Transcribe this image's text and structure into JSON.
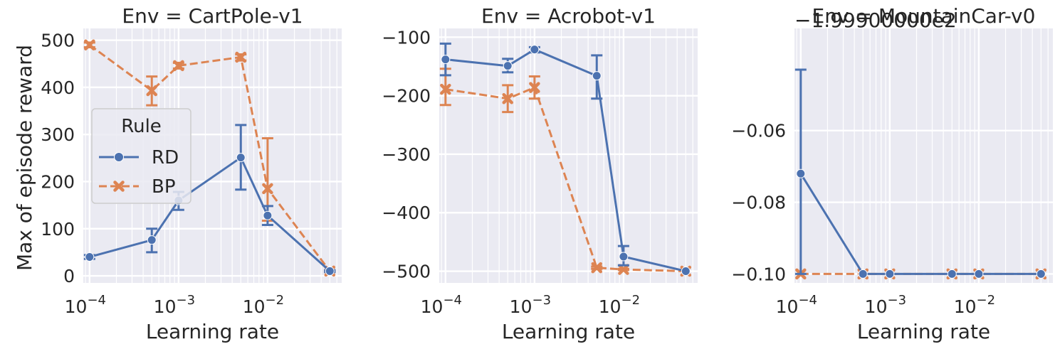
{
  "figure": {
    "ylabel": "Max of episode reward",
    "xlabel": "Learning rate",
    "x_tick_labels": [
      {
        "exp": -4,
        "text": "10",
        "sup": "−4"
      },
      {
        "exp": -3,
        "text": "10",
        "sup": "−3"
      },
      {
        "exp": -2,
        "text": "10",
        "sup": "−2"
      }
    ]
  },
  "legend": {
    "title": "Rule",
    "entries": [
      {
        "name": "RD",
        "color": "#4c72b0",
        "marker": "circle",
        "dash": "solid"
      },
      {
        "name": "BP",
        "color": "#dd8452",
        "marker": "x",
        "dash": "dashed"
      }
    ]
  },
  "colors": {
    "background": "#eaeaf2",
    "grid": "#ffffff",
    "rd": "#4c72b0",
    "bp": "#dd8452"
  },
  "chart_data": [
    {
      "type": "line",
      "title": "Env = CartPole-v1",
      "xscale": "log",
      "xlabel": "Learning rate",
      "ylabel": "Max of episode reward",
      "xlim": [
        8.5e-05,
        0.068
      ],
      "ylim": [
        -15,
        525
      ],
      "y_ticks": [
        0,
        100,
        200,
        300,
        400,
        500
      ],
      "y_tick_labels": [
        "0",
        "100",
        "200",
        "300",
        "400",
        "500"
      ],
      "x": [
        0.0001,
        0.0005,
        0.001,
        0.005,
        0.01,
        0.05
      ],
      "series": [
        {
          "name": "RD",
          "values": [
            40,
            76,
            160,
            251,
            128,
            10
          ],
          "err_low": [
            36,
            50,
            140,
            183,
            108,
            8
          ],
          "err_high": [
            44,
            100,
            178,
            320,
            148,
            12
          ]
        },
        {
          "name": "BP",
          "values": [
            490,
            393,
            446,
            464,
            185,
            10
          ],
          "err_low": [
            485,
            362,
            440,
            457,
            117,
            8
          ],
          "err_high": [
            495,
            423,
            452,
            470,
            292,
            12
          ]
        }
      ]
    },
    {
      "type": "line",
      "title": "Env = Acrobot-v1",
      "xscale": "log",
      "xlabel": "Learning rate",
      "ylabel": "",
      "xlim": [
        8.5e-05,
        0.068
      ],
      "ylim": [
        -520,
        -85
      ],
      "y_ticks": [
        -500,
        -400,
        -300,
        -200,
        -100
      ],
      "y_tick_labels": [
        "−500",
        "−400",
        "−300",
        "−200",
        "−100"
      ],
      "x": [
        0.0001,
        0.0005,
        0.001,
        0.005,
        0.01,
        0.05
      ],
      "series": [
        {
          "name": "RD",
          "values": [
            -138,
            -149,
            -121,
            -166,
            -475,
            -500
          ],
          "err_low": [
            -165,
            -160,
            -126,
            -205,
            -490,
            -500
          ],
          "err_high": [
            -111,
            -137,
            -117,
            -131,
            -457,
            -500
          ]
        },
        {
          "name": "BP",
          "values": [
            -189,
            -205,
            -186,
            -494,
            -497,
            -500
          ],
          "err_low": [
            -216,
            -228,
            -205,
            -496,
            -498,
            -500
          ],
          "err_high": [
            -154,
            -182,
            -167,
            -492,
            -496,
            -500
          ]
        }
      ]
    },
    {
      "type": "line",
      "title": "Env = MountainCar-v0",
      "offset_text": "−1.99900000e2",
      "xscale": "log",
      "xlabel": "Learning rate",
      "ylabel": "",
      "xlim": [
        8.5e-05,
        0.068
      ],
      "ylim": [
        -0.1025,
        -0.0315
      ],
      "y_ticks": [
        -0.1,
        -0.08,
        -0.06
      ],
      "y_tick_labels": [
        "−0.10",
        "−0.08",
        "−0.06"
      ],
      "x": [
        0.0001,
        0.0005,
        0.001,
        0.005,
        0.01,
        0.05
      ],
      "series": [
        {
          "name": "RD",
          "values": [
            -0.072,
            -0.1,
            -0.1,
            -0.1,
            -0.1,
            -0.1
          ],
          "err_low": [
            -0.1,
            -0.1,
            -0.1,
            -0.1,
            -0.1,
            -0.1
          ],
          "err_high": [
            -0.043,
            -0.1,
            -0.1,
            -0.1,
            -0.1,
            -0.1
          ]
        },
        {
          "name": "BP",
          "values": [
            -0.1,
            -0.1,
            -0.1,
            -0.1,
            -0.1,
            -0.1
          ],
          "err_low": [
            -0.1,
            -0.1,
            -0.1,
            -0.1,
            -0.1,
            -0.1
          ],
          "err_high": [
            -0.1,
            -0.1,
            -0.1,
            -0.1,
            -0.1,
            -0.1
          ]
        }
      ]
    }
  ]
}
